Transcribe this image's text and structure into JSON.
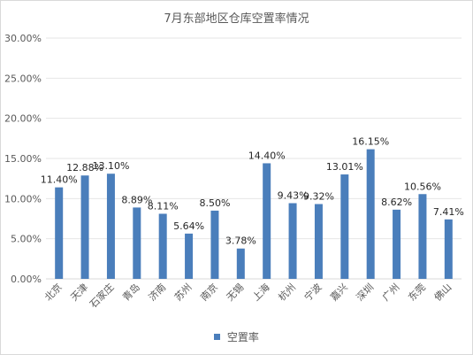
{
  "chart_data": {
    "type": "bar",
    "title": "7月东部地区仓库空置率情况",
    "categories": [
      "北京",
      "天津",
      "石家庄",
      "青岛",
      "济南",
      "苏州",
      "南京",
      "无锡",
      "上海",
      "杭州",
      "宁波",
      "嘉兴",
      "深圳",
      "广州",
      "东莞",
      "佛山"
    ],
    "series": [
      {
        "name": "空置率",
        "values": [
          11.4,
          12.88,
          13.1,
          8.89,
          8.11,
          5.64,
          8.5,
          3.78,
          14.4,
          9.43,
          9.32,
          13.01,
          16.15,
          8.62,
          10.56,
          7.41
        ],
        "labels": [
          "11.40%",
          "12.88%",
          "13.10%",
          "8.89%",
          "8.11%",
          "5.64%",
          "8.50%",
          "3.78%",
          "14.40%",
          "9.43%",
          "9.32%",
          "13.01%",
          "16.15%",
          "8.62%",
          "10.56%",
          "7.41%"
        ]
      }
    ],
    "ylim": [
      0,
      30
    ],
    "yticks": [
      "0.00%",
      "5.00%",
      "10.00%",
      "15.00%",
      "20.00%",
      "25.00%",
      "30.00%"
    ],
    "grid": true,
    "legend_position": "bottom",
    "bar_color": "#4a7ebb"
  }
}
